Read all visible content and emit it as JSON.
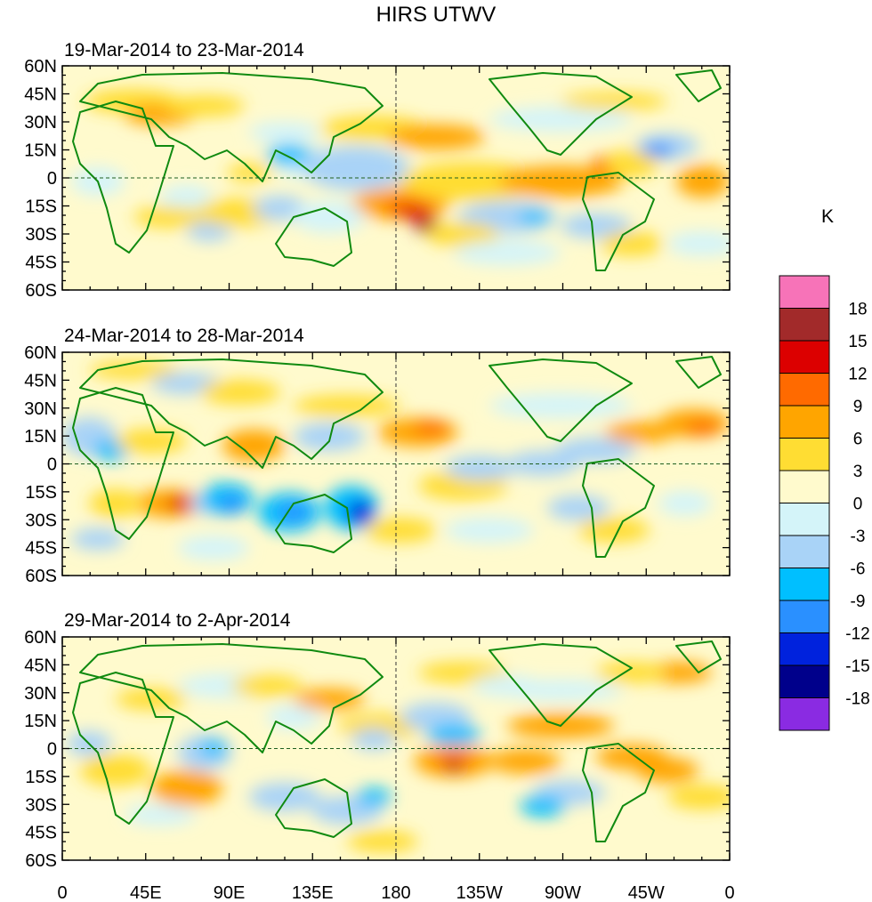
{
  "title": "HIRS UTWV",
  "panels": [
    {
      "subtitle": "19-Mar-2014 to 23-Mar-2014"
    },
    {
      "subtitle": "24-Mar-2014 to 28-Mar-2014"
    },
    {
      "subtitle": "29-Mar-2014 to 2-Apr-2014"
    }
  ],
  "lat_labels": [
    "60N",
    "45N",
    "30N",
    "15N",
    "0",
    "15S",
    "30S",
    "45S",
    "60S"
  ],
  "lon_labels": [
    "0",
    "45E",
    "90E",
    "135E",
    "180",
    "135W",
    "90W",
    "45W",
    "0"
  ],
  "colorbar": {
    "unit": "K",
    "labels": [
      "18",
      "15",
      "12",
      "9",
      "6",
      "3",
      "0",
      "-3",
      "-6",
      "-9",
      "-12",
      "-15",
      "-18"
    ],
    "colors": [
      "#f773b8",
      "#a22a2a",
      "#dc0000",
      "#ff6a00",
      "#ffa500",
      "#ffdd33",
      "#fffacd",
      "#d4f4f9",
      "#a9d3f7",
      "#00bfff",
      "#2a90ff",
      "#0022dd",
      "#00008b",
      "#8a2be2"
    ]
  },
  "map_colors": {
    "coast": "#108a10",
    "border": "#108a10",
    "reference_line": "#1f5f1f"
  }
}
